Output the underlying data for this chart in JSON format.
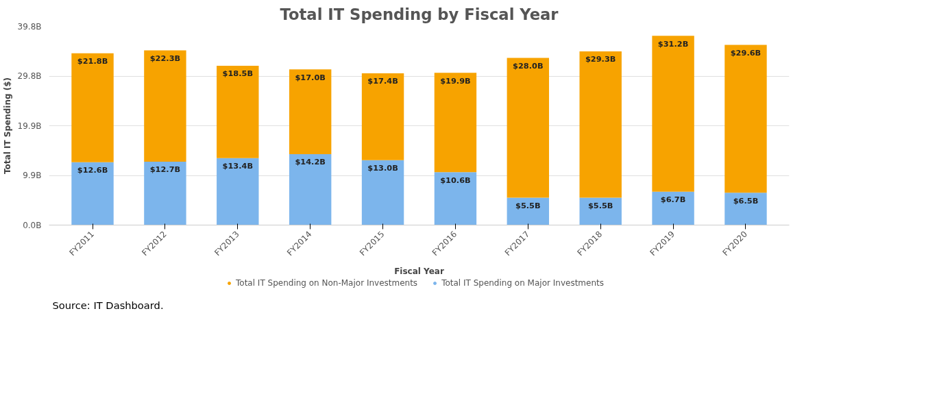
{
  "chart_data": {
    "type": "bar",
    "stacked": true,
    "title": "Total IT Spending by Fiscal Year",
    "xlabel": "Fiscal Year",
    "ylabel": "Total IT Spending ($)",
    "categories": [
      "FY2011",
      "FY2012",
      "FY2013",
      "FY2014",
      "FY2015",
      "FY2016",
      "FY2017",
      "FY2018",
      "FY2019",
      "FY2020"
    ],
    "series": [
      {
        "name": "Total IT Spending on Major Investments",
        "color": "#7cb5ec",
        "values": [
          12.6,
          12.7,
          13.4,
          14.2,
          13.0,
          10.6,
          5.5,
          5.5,
          6.7,
          6.5
        ],
        "value_labels": [
          "$12.6B",
          "$12.7B",
          "$13.4B",
          "$14.2B",
          "$13.0B",
          "$10.6B",
          "$5.5B",
          "$5.5B",
          "$6.7B",
          "$6.5B"
        ]
      },
      {
        "name": "Total IT Spending on Non-Major Investments",
        "color": "#f7a300",
        "values": [
          21.8,
          22.3,
          18.5,
          17.0,
          17.4,
          19.9,
          28.0,
          29.3,
          31.2,
          29.6
        ],
        "value_labels": [
          "$21.8B",
          "$22.3B",
          "$18.5B",
          "$17.0B",
          "$17.4B",
          "$19.9B",
          "$28.0B",
          "$29.3B",
          "$31.2B",
          "$29.6B"
        ]
      }
    ],
    "ylim": [
      0,
      39.8
    ],
    "yticks": [
      {
        "value": 0,
        "label": "0.0B"
      },
      {
        "value": 9.9,
        "label": "9.9B"
      },
      {
        "value": 19.9,
        "label": "19.9B"
      },
      {
        "value": 29.8,
        "label": "29.8B"
      },
      {
        "value": 39.8,
        "label": "39.8B"
      }
    ],
    "grid": "y",
    "legend": "bottom",
    "annotations": [
      "Source:  IT Dashboard."
    ]
  }
}
